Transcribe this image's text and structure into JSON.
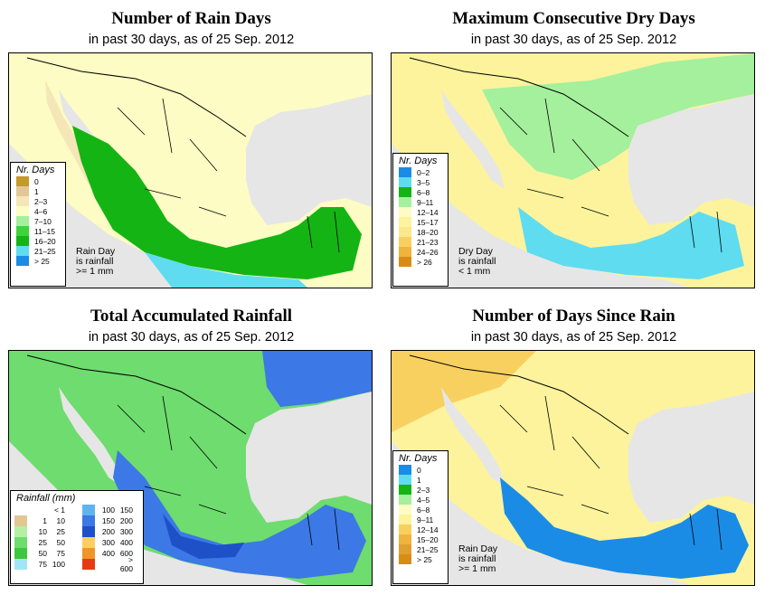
{
  "panels": [
    {
      "title": "Number of Rain Days",
      "subtitle": "in past 30 days, as of  25 Sep. 2012",
      "legend_title": "Nr. Days",
      "legend": [
        {
          "label": "0",
          "color": "#c49a2a"
        },
        {
          "label": "1",
          "color": "#e2c795"
        },
        {
          "label": "2–3",
          "color": "#f5e6b8"
        },
        {
          "label": "4–6",
          "color": "#fdfcc4"
        },
        {
          "label": "7–10",
          "color": "#a4f09c"
        },
        {
          "label": "11–15",
          "color": "#3cd43c"
        },
        {
          "label": "16–20",
          "color": "#14b414"
        },
        {
          "label": "21–25",
          "color": "#5fdcf0"
        },
        {
          "label": "> 25",
          "color": "#1a8ce6"
        }
      ],
      "note": [
        "Rain Day",
        "is rainfall",
        ">= 1 mm"
      ]
    },
    {
      "title": "Maximum Consecutive Dry Days",
      "subtitle": "in past 30 days, as of  25 Sep. 2012",
      "legend_title": "Nr. Days",
      "legend": [
        {
          "label": "0–2",
          "color": "#1a8ce6"
        },
        {
          "label": "3–5",
          "color": "#5fdcf0"
        },
        {
          "label": "6–8",
          "color": "#14b414"
        },
        {
          "label": "9–11",
          "color": "#a4f09c"
        },
        {
          "label": "12–14",
          "color": "#fdfcc4"
        },
        {
          "label": "15–17",
          "color": "#fcf39c"
        },
        {
          "label": "18–20",
          "color": "#fce88c"
        },
        {
          "label": "21–23",
          "color": "#f8d060"
        },
        {
          "label": "24–26",
          "color": "#f0b43c"
        },
        {
          "label": "> 26",
          "color": "#d98c14"
        }
      ],
      "note": [
        "Dry Day",
        "is rainfall",
        "< 1 mm"
      ]
    },
    {
      "title": "Total Accumulated Rainfall",
      "subtitle": "in past 30 days, as of  25 Sep. 2012",
      "legend_title": "Rainfall (mm)",
      "legend_left": [
        {
          "lo": "",
          "hi": "< 1",
          "color": "#ffffff"
        },
        {
          "lo": "1",
          "hi": "10",
          "color": "#e2c795"
        },
        {
          "lo": "10",
          "hi": "25",
          "color": "#b4f0a4"
        },
        {
          "lo": "25",
          "hi": "50",
          "color": "#6edc6e"
        },
        {
          "lo": "50",
          "hi": "75",
          "color": "#3cc83c"
        },
        {
          "lo": "75",
          "hi": "100",
          "color": "#a0e6f8"
        }
      ],
      "legend_right": [
        {
          "lo": "100",
          "hi": "150",
          "color": "#5fb4f0"
        },
        {
          "lo": "150",
          "hi": "200",
          "color": "#3c78e6"
        },
        {
          "lo": "200",
          "hi": "300",
          "color": "#1e50c8"
        },
        {
          "lo": "300",
          "hi": "400",
          "color": "#f8d060"
        },
        {
          "lo": "400",
          "hi": "600",
          "color": "#f09628"
        },
        {
          "lo": "",
          "hi": "> 600",
          "color": "#e63c14"
        }
      ]
    },
    {
      "title": "Number of Days Since Rain",
      "subtitle": "in past 30 days, as of  25 Sep. 2012",
      "legend_title": "Nr. Days",
      "legend": [
        {
          "label": "0",
          "color": "#1a8ce6"
        },
        {
          "label": "1",
          "color": "#5fdcf0"
        },
        {
          "label": "2–3",
          "color": "#14b414"
        },
        {
          "label": "4–5",
          "color": "#a4f09c"
        },
        {
          "label": "6–8",
          "color": "#fdfcc4"
        },
        {
          "label": "9–11",
          "color": "#fcf39c"
        },
        {
          "label": "12–14",
          "color": "#f8d060"
        },
        {
          "label": "15–20",
          "color": "#f0b43c"
        },
        {
          "label": "21–25",
          "color": "#e0a030"
        },
        {
          "label": "> 25",
          "color": "#d98c14"
        }
      ],
      "note": [
        "Rain Day",
        "is rainfall",
        ">= 1 mm"
      ]
    }
  ],
  "colors": {
    "ocean": "#e6e6e6",
    "p0_main": "#fdfcc4",
    "p0_alt": "#14b414",
    "p1_main": "#fcf39c",
    "p1_alt": "#a4f09c",
    "p2_main": "#6edc6e",
    "p2_alt": "#3c78e6",
    "p3_main": "#fcf39c",
    "p3_alt": "#1a8ce6"
  }
}
